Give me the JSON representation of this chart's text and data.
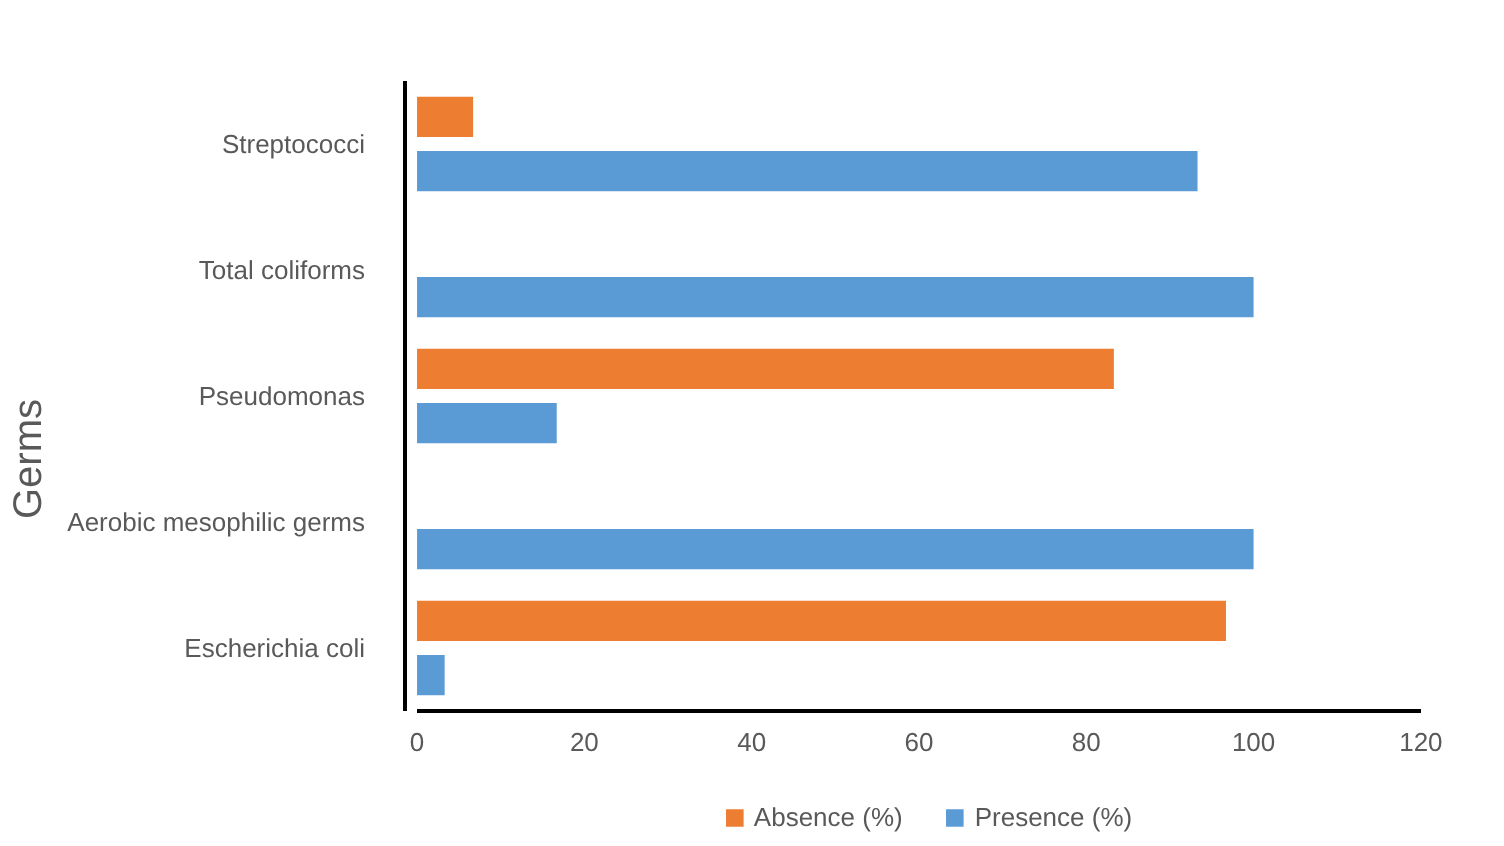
{
  "chart_data": {
    "type": "bar",
    "orientation": "horizontal",
    "ylabel": "Germs",
    "categories": [
      "Streptococci",
      "Total coliforms",
      "Pseudomonas",
      "Aerobic mesophilic germs",
      "Escherichia coli"
    ],
    "series": [
      {
        "name": "Absence (%)",
        "color": "#ed7d31",
        "values": [
          6.7,
          0,
          83.3,
          0,
          96.7
        ]
      },
      {
        "name": "Presence (%)",
        "color": "#5b9bd5",
        "values": [
          93.3,
          100,
          16.7,
          100,
          3.3
        ]
      }
    ],
    "xlim": [
      0,
      120
    ],
    "xticks": [
      0,
      20,
      40,
      60,
      80,
      100,
      120
    ],
    "grid": false,
    "legend": "bottom"
  }
}
